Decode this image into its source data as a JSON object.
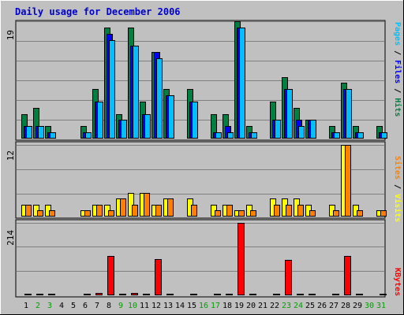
{
  "title": "Daily usage for December 2006",
  "colors": {
    "frame_bg": "#c0c0c0",
    "title": "#0000cc",
    "hits": "#008040",
    "files": "#0000ff",
    "pages": "#00c0ff",
    "visits": "#ffff00",
    "sites": "#ff8000",
    "kbytes": "#ff0000",
    "grid": "#808080"
  },
  "chart_data": [
    {
      "type": "bar",
      "name": "hits-files-pages",
      "ylabel_parts": [
        {
          "text": "Pages",
          "color": "#00c0ff"
        },
        {
          "text": " / ",
          "color": "#000000"
        },
        {
          "text": "Files",
          "color": "#0000ff"
        },
        {
          "text": " / ",
          "color": "#000000"
        },
        {
          "text": "Hits",
          "color": "#008040"
        }
      ],
      "max_label": "19",
      "ylim": [
        0,
        19
      ],
      "categories": [
        "1",
        "2",
        "3",
        "4",
        "5",
        "6",
        "7",
        "8",
        "9",
        "10",
        "11",
        "12",
        "13",
        "14",
        "15",
        "16",
        "17",
        "18",
        "19",
        "20",
        "21",
        "22",
        "23",
        "24",
        "25",
        "26",
        "27",
        "28",
        "29",
        "30",
        "31"
      ],
      "series": [
        {
          "name": "Hits",
          "color": "#008040",
          "values": [
            4,
            5,
            2,
            0,
            0,
            2,
            8,
            18,
            4,
            18,
            6,
            14,
            8,
            0,
            8,
            0,
            4,
            4,
            19,
            2,
            0,
            6,
            10,
            5,
            3,
            0,
            2,
            9,
            2,
            0,
            2
          ]
        },
        {
          "name": "Files",
          "color": "#0000ff",
          "values": [
            2,
            2,
            1,
            0,
            0,
            1,
            6,
            17,
            3,
            15,
            4,
            14,
            7,
            0,
            6,
            0,
            1,
            2,
            18,
            1,
            0,
            3,
            8,
            3,
            3,
            0,
            1,
            8,
            1,
            0,
            1
          ]
        },
        {
          "name": "Pages",
          "color": "#00c0ff",
          "values": [
            2,
            2,
            1,
            0,
            0,
            1,
            6,
            16,
            3,
            15,
            4,
            13,
            7,
            0,
            6,
            0,
            1,
            1,
            18,
            1,
            0,
            3,
            8,
            2,
            3,
            0,
            1,
            8,
            1,
            0,
            1
          ]
        }
      ]
    },
    {
      "type": "bar",
      "name": "visits-sites",
      "ylabel_parts": [
        {
          "text": "Sites",
          "color": "#ff8000"
        },
        {
          "text": " / ",
          "color": "#000000"
        },
        {
          "text": "Visits",
          "color": "#ffff00"
        }
      ],
      "max_label": "12",
      "ylim": [
        0,
        12
      ],
      "categories": [
        "1",
        "2",
        "3",
        "4",
        "5",
        "6",
        "7",
        "8",
        "9",
        "10",
        "11",
        "12",
        "13",
        "14",
        "15",
        "16",
        "17",
        "18",
        "19",
        "20",
        "21",
        "22",
        "23",
        "24",
        "25",
        "26",
        "27",
        "28",
        "29",
        "30",
        "31"
      ],
      "series": [
        {
          "name": "Visits",
          "color": "#ffff00",
          "values": [
            2,
            2,
            2,
            0,
            0,
            1,
            2,
            2,
            3,
            4,
            4,
            2,
            3,
            0,
            3,
            0,
            2,
            2,
            1,
            2,
            0,
            3,
            3,
            3,
            2,
            0,
            2,
            12,
            2,
            0,
            1
          ]
        },
        {
          "name": "Sites",
          "color": "#ff8000",
          "values": [
            2,
            1,
            1,
            0,
            0,
            1,
            2,
            1,
            3,
            2,
            4,
            2,
            3,
            0,
            2,
            0,
            1,
            2,
            1,
            1,
            0,
            2,
            2,
            2,
            1,
            0,
            1,
            12,
            1,
            0,
            1
          ]
        }
      ]
    },
    {
      "type": "bar",
      "name": "kbytes",
      "ylabel_parts": [
        {
          "text": "KBytes",
          "color": "#ff0000"
        }
      ],
      "max_label": "214",
      "ylim": [
        0,
        214
      ],
      "categories": [
        "1",
        "2",
        "3",
        "4",
        "5",
        "6",
        "7",
        "8",
        "9",
        "10",
        "11",
        "12",
        "13",
        "14",
        "15",
        "16",
        "17",
        "18",
        "19",
        "20",
        "21",
        "22",
        "23",
        "24",
        "25",
        "26",
        "27",
        "28",
        "29",
        "30",
        "31"
      ],
      "series": [
        {
          "name": "KBytes",
          "color": "#ff0000",
          "values": [
            1,
            1,
            1,
            0,
            0,
            1,
            6,
            116,
            1,
            6,
            3,
            106,
            3,
            0,
            3,
            0,
            1,
            1,
            214,
            1,
            0,
            1,
            104,
            1,
            1,
            0,
            1,
            116,
            1,
            0,
            1
          ]
        }
      ]
    }
  ],
  "x_axis": {
    "labels": [
      "1",
      "2",
      "3",
      "4",
      "5",
      "6",
      "7",
      "8",
      "9",
      "10",
      "11",
      "12",
      "13",
      "14",
      "15",
      "16",
      "17",
      "18",
      "19",
      "20",
      "21",
      "22",
      "23",
      "24",
      "25",
      "26",
      "27",
      "28",
      "29",
      "30",
      "31"
    ],
    "weekend": [
      false,
      true,
      true,
      false,
      false,
      false,
      false,
      false,
      true,
      true,
      false,
      false,
      false,
      false,
      false,
      true,
      true,
      false,
      false,
      false,
      false,
      false,
      true,
      true,
      false,
      false,
      false,
      false,
      false,
      true,
      true
    ],
    "weekday_color": "#000000",
    "weekend_color": "#00a000"
  }
}
